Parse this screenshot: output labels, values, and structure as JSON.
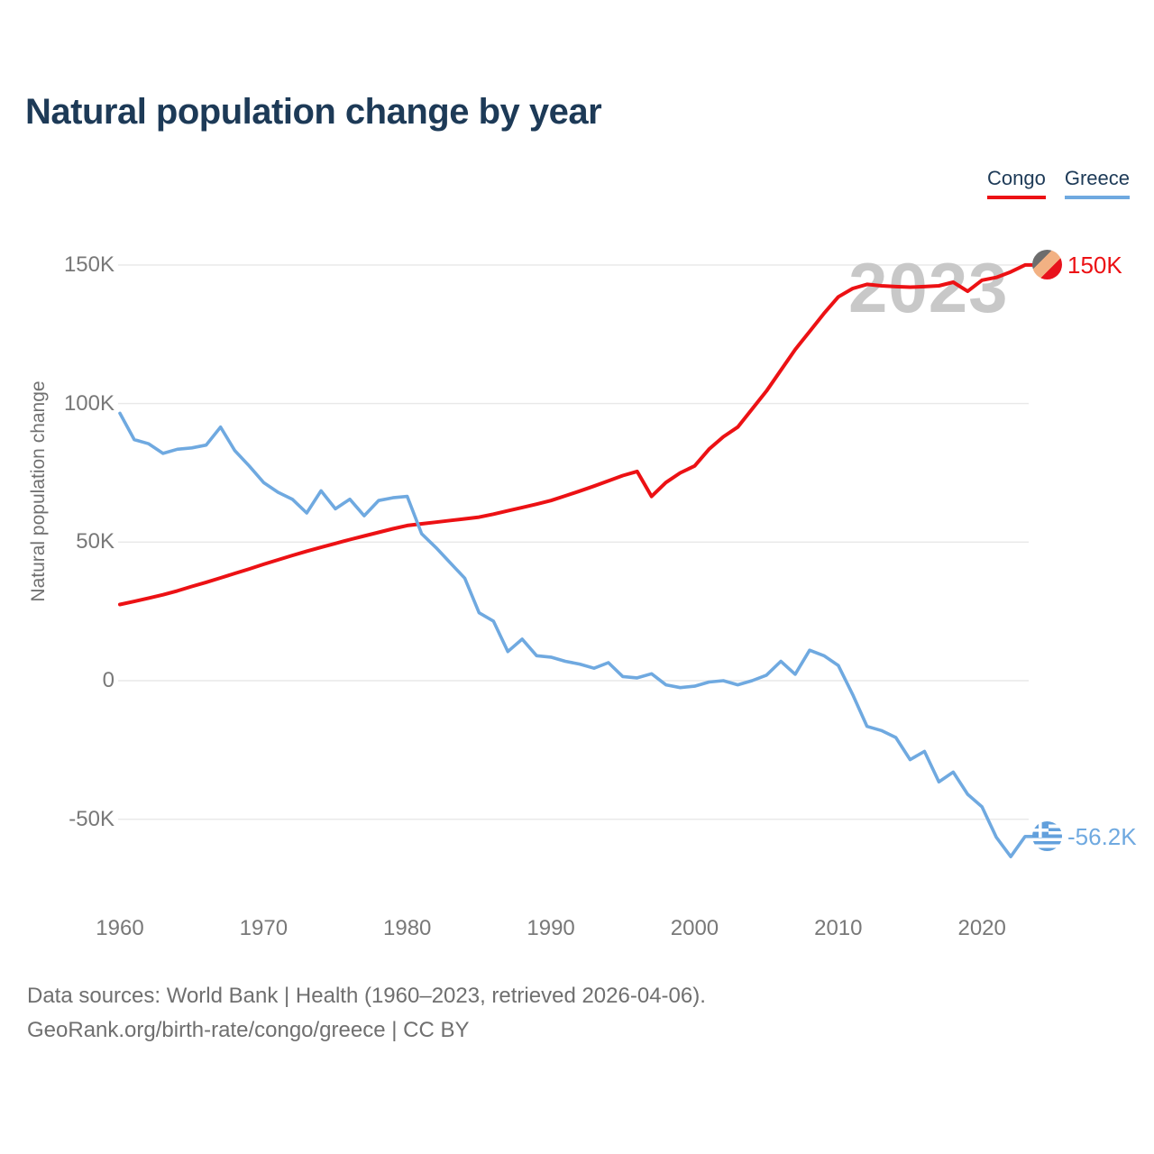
{
  "title": "Natural population change by year",
  "legend": {
    "items": [
      {
        "label": "Congo",
        "color": "#ec1114"
      },
      {
        "label": "Greece",
        "color": "#6fa9e0"
      }
    ]
  },
  "watermark": "2023",
  "icons": {
    "congo_flag_colors": [
      "#6d6d6d",
      "#f2b183",
      "#e8121c"
    ],
    "greece_flag_colors": [
      "#62a0dc",
      "#ffffff"
    ]
  },
  "footer": {
    "line1": "Data sources: World Bank | Health (1960–2023, retrieved 2026-04-06).",
    "line2": "GeoRank.org/birth-rate/congo/greece | CC BY"
  },
  "chart_data": {
    "type": "line",
    "title": "Natural population change by year",
    "xlabel": "",
    "ylabel": "Natural population change",
    "unit": "thousands of people (K)",
    "grid": true,
    "legend_position": "top-right",
    "ylim": [
      -75,
      165
    ],
    "xlim": [
      1960,
      2023
    ],
    "yticks": [
      {
        "label": "150K",
        "value": 150
      },
      {
        "label": "100K",
        "value": 100
      },
      {
        "label": "50K",
        "value": 50
      },
      {
        "label": "0",
        "value": 0
      },
      {
        "label": "-50K",
        "value": -50
      }
    ],
    "xticks": [
      1960,
      1970,
      1980,
      1990,
      2000,
      2010,
      2020
    ],
    "x": [
      1960,
      1961,
      1962,
      1963,
      1964,
      1965,
      1966,
      1967,
      1968,
      1969,
      1970,
      1971,
      1972,
      1973,
      1974,
      1975,
      1976,
      1977,
      1978,
      1979,
      1980,
      1981,
      1982,
      1983,
      1984,
      1985,
      1986,
      1987,
      1988,
      1989,
      1990,
      1991,
      1992,
      1993,
      1994,
      1995,
      1996,
      1997,
      1998,
      1999,
      2000,
      2001,
      2002,
      2003,
      2004,
      2005,
      2006,
      2007,
      2008,
      2009,
      2010,
      2011,
      2012,
      2013,
      2014,
      2015,
      2016,
      2017,
      2018,
      2019,
      2020,
      2021,
      2022,
      2023
    ],
    "series": [
      {
        "name": "Congo",
        "color": "#ec1114",
        "stroke_width": 4,
        "end_label": "150K",
        "flag": "congo",
        "values": [
          27.5,
          28.6,
          29.8,
          31,
          32.4,
          34,
          35.5,
          37.1,
          38.7,
          40.3,
          42,
          43.6,
          45.2,
          46.7,
          48.1,
          49.5,
          50.9,
          52.2,
          53.5,
          54.8,
          56,
          56.6,
          57.2,
          57.8,
          58.4,
          59,
          60.1,
          61.3,
          62.5,
          63.7,
          65,
          66.7,
          68.4,
          70.2,
          72.1,
          74,
          75.5,
          66.5,
          71.5,
          75,
          77.5,
          83.5,
          88,
          91.5,
          98,
          104.5,
          112,
          119.5,
          126,
          132.5,
          138.5,
          141.5,
          143,
          142.5,
          142.2,
          142,
          142.2,
          142.5,
          143.8,
          140.5,
          144.5,
          145.5,
          147.5,
          150
        ]
      },
      {
        "name": "Greece",
        "color": "#6fa9e0",
        "stroke_width": 3.6,
        "end_label": "-56.2K",
        "flag": "greece",
        "values": [
          96.5,
          87,
          85.5,
          82,
          83.5,
          84,
          85,
          91.5,
          83,
          77.5,
          71.5,
          68,
          65.5,
          60.5,
          68.5,
          62,
          65.5,
          59.5,
          65,
          66,
          66.5,
          53,
          48,
          42.5,
          37,
          24.5,
          21.5,
          10.5,
          15,
          9,
          8.5,
          7,
          6,
          4.5,
          6.5,
          1.5,
          1,
          2.5,
          -1.5,
          -2.5,
          -2,
          -0.5,
          0,
          -1.5,
          0,
          2,
          7,
          2.3,
          11,
          9,
          5.5,
          -5,
          -16.5,
          -18,
          -20.5,
          -28.5,
          -25.5,
          -36.5,
          -33,
          -41,
          -45.5,
          -56.5,
          -63.5,
          -56.2
        ]
      }
    ]
  }
}
